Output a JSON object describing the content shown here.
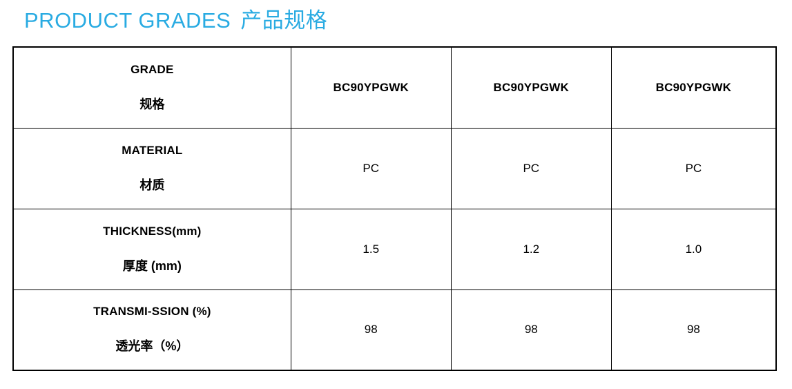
{
  "page": {
    "title_en": "PRODUCT GRADES",
    "title_zh": "产品规格",
    "title_color": "#29ABE2"
  },
  "table": {
    "border_color": "#000000",
    "rows": [
      {
        "label_en": "GRADE",
        "label_zh": "规格",
        "values": [
          "BC90YPGWK",
          "BC90YPGWK",
          "BC90YPGWK"
        ]
      },
      {
        "label_en": "MATERIAL",
        "label_zh": "材质",
        "values": [
          "PC",
          "PC",
          "PC"
        ]
      },
      {
        "label_en": "THICKNESS(mm)",
        "label_zh": "厚度 (mm)",
        "values": [
          "1.5",
          "1.2",
          "1.0"
        ]
      },
      {
        "label_en": "TRANSMI-SSION (%)",
        "label_zh": "透光率（%）",
        "values": [
          "98",
          "98",
          "98"
        ]
      }
    ]
  }
}
